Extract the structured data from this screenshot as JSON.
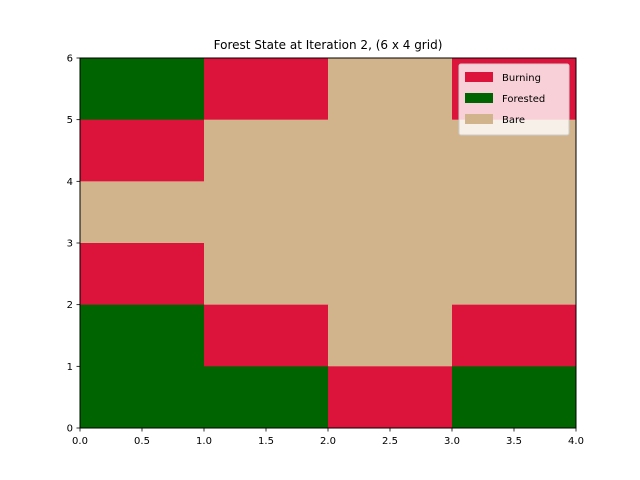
{
  "chart_data": {
    "type": "heatmap",
    "title": "Forest State at Iteration 2, (6 x 4 grid)",
    "xlabel": "",
    "ylabel": "",
    "xlim": [
      0,
      4
    ],
    "ylim": [
      0,
      6
    ],
    "x_ticks": [
      "0.0",
      "0.5",
      "1.0",
      "1.5",
      "2.0",
      "2.5",
      "3.0",
      "3.5",
      "4.0"
    ],
    "y_ticks": [
      "0",
      "1",
      "2",
      "3",
      "4",
      "5",
      "6"
    ],
    "legend_position": "top-right",
    "grid": false,
    "states": [
      {
        "key": "burning",
        "name": "Burning",
        "color": "#DC143C"
      },
      {
        "key": "forested",
        "name": "Forested",
        "color": "#006400"
      },
      {
        "key": "bare",
        "name": "Bare",
        "color": "#D2B48C"
      }
    ],
    "cells_rows_top_to_bottom": [
      [
        "forested",
        "burning",
        "bare",
        "burning"
      ],
      [
        "burning",
        "bare",
        "bare",
        "bare"
      ],
      [
        "bare",
        "bare",
        "bare",
        "bare"
      ],
      [
        "burning",
        "bare",
        "bare",
        "bare"
      ],
      [
        "forested",
        "burning",
        "bare",
        "burning"
      ],
      [
        "forested",
        "forested",
        "burning",
        "forested"
      ]
    ]
  }
}
